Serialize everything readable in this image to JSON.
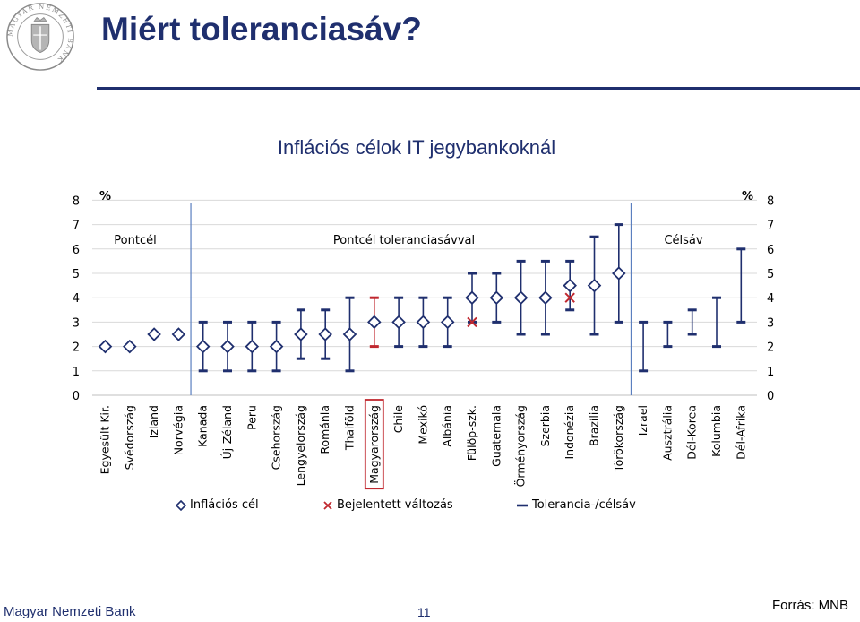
{
  "page": {
    "title": "Miért toleranciasáv?",
    "footer_left": "Magyar Nemzeti Bank",
    "page_number": "11",
    "source": "Forrás: MNB",
    "logo_text": "MAGYAR NEMZETI BANK",
    "accent_color": "#1f2f6e"
  },
  "chart_data": {
    "type": "scatter",
    "title": "Inflációs célok IT jegybankoknál",
    "ylabel_left": "%",
    "ylabel_right": "%",
    "ylim": [
      0,
      8
    ],
    "yticks": [
      0,
      1,
      2,
      3,
      4,
      5,
      6,
      7,
      8
    ],
    "grid": true,
    "categories": [
      "Egyesült Kir.",
      "Svédország",
      "Izland",
      "Norvégia",
      "Kanada",
      "Új-Zéland",
      "Peru",
      "Csehország",
      "Lengyelország",
      "Románia",
      "Thaiföld",
      "Magyarország",
      "Chile",
      "Mexikó",
      "Albánia",
      "Fülöp-szk.",
      "Guatemala",
      "Örményország",
      "Szerbia",
      "Indonézia",
      "Brazília",
      "Törökország",
      "Izrael",
      "Ausztrália",
      "Dél-Korea",
      "Kolumbia",
      "Dél-Afrika"
    ],
    "highlighted_category": "Magyarország",
    "group_labels": [
      "Pontcél",
      "Pontcél toleranciasávval",
      "Célsáv"
    ],
    "series": [
      {
        "name": "Inflációs cél",
        "values": [
          2,
          2,
          2.5,
          2.5,
          2,
          2,
          2,
          2,
          2.5,
          2.5,
          2.5,
          3,
          3,
          3,
          3,
          4,
          4,
          4,
          4,
          4.5,
          4.5,
          5,
          null,
          null,
          null,
          null,
          null
        ]
      },
      {
        "name": "Bejelentett változás",
        "values": [
          null,
          null,
          null,
          null,
          null,
          null,
          null,
          null,
          null,
          null,
          null,
          null,
          null,
          null,
          null,
          3,
          null,
          null,
          null,
          4,
          null,
          null,
          null,
          null,
          null,
          null,
          null
        ]
      },
      {
        "name": "Tolerancia-/célsáv",
        "low": [
          null,
          null,
          null,
          null,
          1,
          1,
          1,
          1,
          1.5,
          1.5,
          1,
          2,
          2,
          2,
          2,
          3,
          3,
          2.5,
          2.5,
          3.5,
          2.5,
          3,
          1,
          2,
          2.5,
          2,
          3
        ],
        "high": [
          null,
          null,
          null,
          null,
          3,
          3,
          3,
          3,
          3.5,
          3.5,
          4,
          4,
          4,
          4,
          4,
          5,
          5,
          5.5,
          5.5,
          5.5,
          6.5,
          7,
          3,
          3,
          3.5,
          4,
          6
        ]
      }
    ],
    "neutral_target_markers": [
      null,
      null,
      null,
      null,
      2,
      2,
      null,
      null,
      null,
      null,
      null,
      null,
      null,
      null,
      null,
      null,
      null,
      null,
      null,
      null,
      null,
      null,
      null,
      null,
      null,
      null,
      null
    ],
    "colors": {
      "series": "#1f2f6e",
      "change": "#c0282f",
      "hungary": "#c0282f",
      "divider": "#5b7fbf",
      "neutral": "#bfbfbf",
      "grid": "#d9d9d9"
    }
  }
}
